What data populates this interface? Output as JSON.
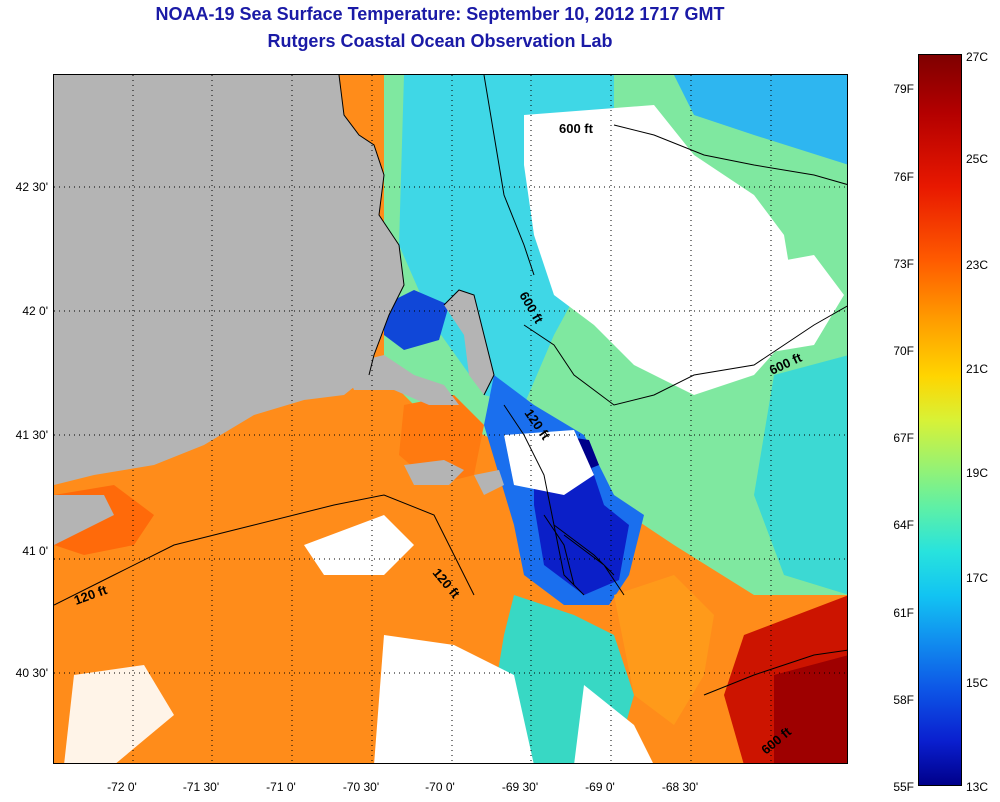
{
  "title_line1": "NOAA-19 Sea Surface Temperature:  September 10, 2012 1717 GMT",
  "title_line2": "Rutgers Coastal Ocean Observation Lab",
  "latitude_labels": [
    "42 30'",
    "42 0'",
    "41 30'",
    "41 0'",
    "40 30'"
  ],
  "longitude_labels": [
    "-72 0'",
    "-71 30'",
    "-71 0'",
    "-70 30'",
    "-70 0'",
    "-69 30'",
    "-69 0'",
    "-68 30'"
  ],
  "depth_contour_labels": [
    "600 ft",
    "600 ft",
    "600 ft",
    "120 ft",
    "120 ft",
    "120 ft",
    "600 ft"
  ],
  "colorbar": {
    "fahrenheit_labels": [
      "79F",
      "76F",
      "73F",
      "70F",
      "67F",
      "64F",
      "61F",
      "58F",
      "55F"
    ],
    "celsius_labels": [
      "27C",
      "25C",
      "23C",
      "21C",
      "19C",
      "17C",
      "15C",
      "13C"
    ]
  },
  "colors": {
    "title": "#1a1aa6",
    "land": "#b4b4b4",
    "cloud_mask": "#ffffff",
    "coastline": "#000000"
  }
}
